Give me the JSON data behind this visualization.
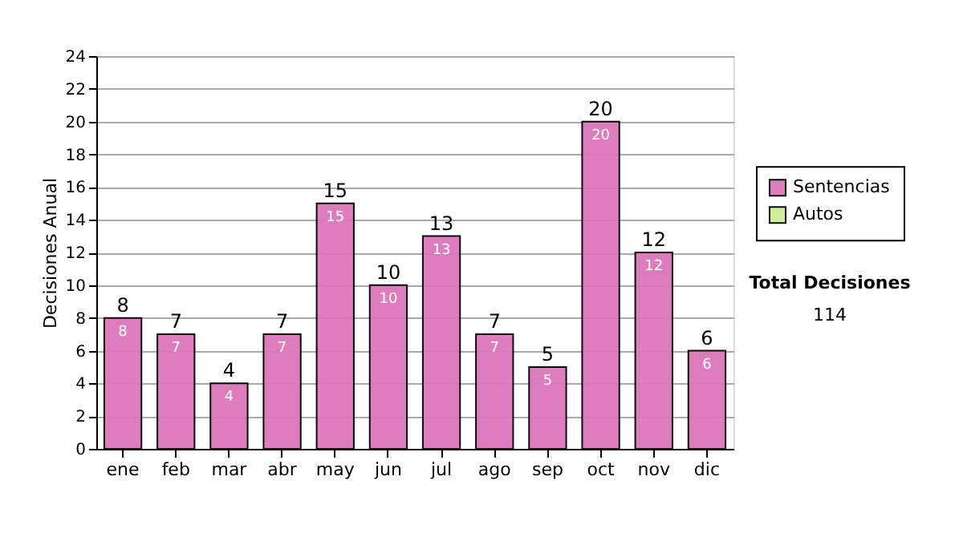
{
  "chart_data": {
    "type": "bar",
    "stacked": true,
    "ylabel": "Decisiones Anual",
    "categories": [
      "ene",
      "feb",
      "mar",
      "abr",
      "may",
      "jun",
      "jul",
      "ago",
      "sep",
      "oct",
      "nov",
      "dic"
    ],
    "series": [
      {
        "name": "Sentencias",
        "color": "#dd77bb",
        "values": [
          8,
          7,
          4,
          7,
          15,
          10,
          13,
          7,
          5,
          20,
          12,
          6
        ],
        "value_labels": [
          "8",
          "7",
          "4",
          "7",
          "15",
          "10",
          "13",
          "7",
          "5",
          "20",
          "12",
          "6"
        ]
      },
      {
        "name": "Autos",
        "color": "#ccee99",
        "values": [
          null,
          null,
          null,
          null,
          null,
          null,
          null,
          null,
          null,
          null,
          null,
          null
        ]
      }
    ],
    "totals": [
      "8",
      "7",
      "4",
      "7",
      "15",
      "10",
      "13",
      "7",
      "5",
      "20",
      "12",
      "6"
    ],
    "ylim": [
      0,
      24
    ],
    "yticks": [
      0,
      2,
      4,
      6,
      8,
      10,
      12,
      14,
      16,
      18,
      20,
      22,
      24
    ],
    "grid": "y",
    "legend": "right",
    "annotations": [
      "Total Decisiones",
      "114"
    ]
  }
}
